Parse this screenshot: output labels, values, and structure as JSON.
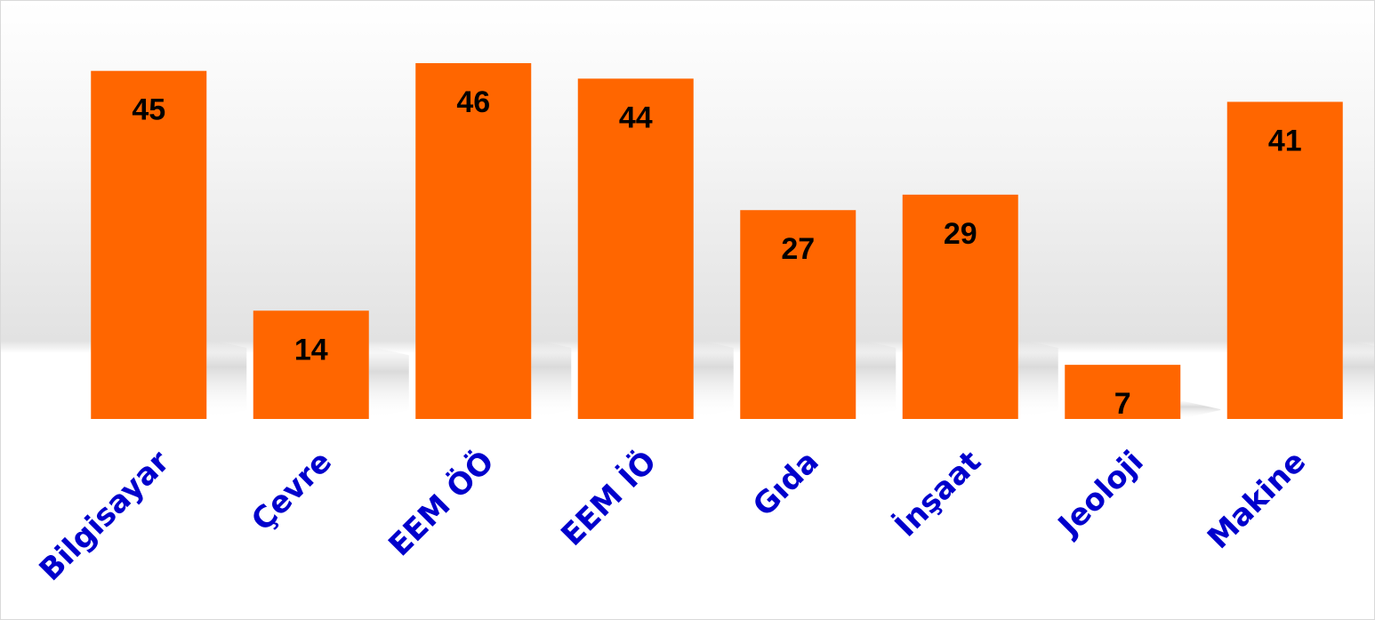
{
  "chart_data": {
    "type": "bar",
    "title": "",
    "xlabel": "",
    "ylabel": "",
    "categories": [
      "Bilgisayar",
      "Çevre",
      "EEM ÖÖ",
      "EEM İÖ",
      "Gıda",
      "İnşaat",
      "Jeoloji",
      "Makine"
    ],
    "values": [
      45,
      14,
      46,
      44,
      27,
      29,
      7,
      41
    ],
    "ylim": [
      0,
      46
    ],
    "grid": false,
    "legend": "none",
    "data_labels": true,
    "colors": {
      "bar": "#FF6600",
      "category_text": "#0000CC",
      "value_text": "#000000",
      "backdrop_light": "#ffffff",
      "backdrop_dark": "#d6d6d6"
    }
  }
}
